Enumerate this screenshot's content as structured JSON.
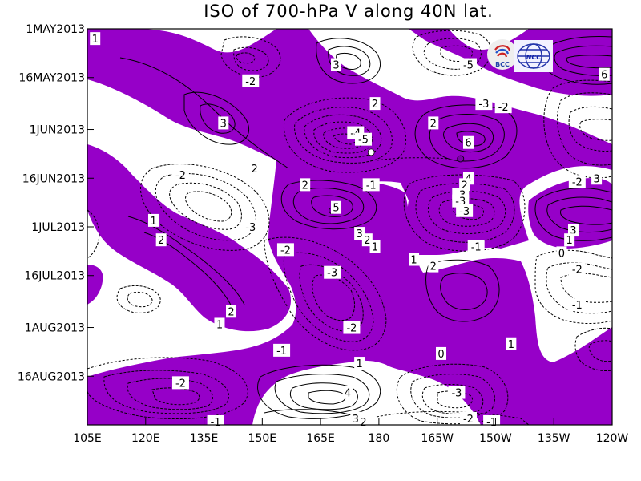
{
  "chart_data": {
    "type": "heatmap",
    "title": "ISO of 700-hPa V along 40N lat.",
    "xlabel": "",
    "ylabel": "",
    "x_ticks": [
      "105E",
      "120E",
      "135E",
      "150E",
      "165E",
      "180",
      "165W",
      "150W",
      "135W",
      "120W"
    ],
    "x_range": [
      "105E",
      "120W"
    ],
    "y_ticks": [
      "1MAY2013",
      "16MAY2013",
      "1JUN2013",
      "16JUN2013",
      "1JUL2013",
      "16JUL2013",
      "1AUG2013",
      "16AUG2013"
    ],
    "y_range": [
      "1MAY2013",
      "31AUG2013"
    ],
    "shading": {
      "positive_color": "#9600c8",
      "negative_color": "#ffffff",
      "threshold": 0
    },
    "contour_labels": [
      {
        "label": "1",
        "lon": "107E",
        "date": "2013-05-04"
      },
      {
        "label": "3",
        "lon": "169E",
        "date": "2013-05-12"
      },
      {
        "label": "-5",
        "lon": "157W",
        "date": "2013-05-12"
      },
      {
        "label": "6",
        "lon": "122W",
        "date": "2013-05-15"
      },
      {
        "label": "-2",
        "lon": "147E",
        "date": "2013-05-17"
      },
      {
        "label": "2",
        "lon": "179E",
        "date": "2013-05-24"
      },
      {
        "label": "-3",
        "lon": "153W",
        "date": "2013-05-24"
      },
      {
        "label": "-2",
        "lon": "148W",
        "date": "2013-05-25"
      },
      {
        "label": "3",
        "lon": "140E",
        "date": "2013-05-30"
      },
      {
        "label": "2",
        "lon": "166W",
        "date": "2013-05-30"
      },
      {
        "label": "-4",
        "lon": "174E",
        "date": "2013-06-02"
      },
      {
        "label": "-5",
        "lon": "176E",
        "date": "2013-06-04"
      },
      {
        "label": "6",
        "lon": "157W",
        "date": "2013-06-05"
      },
      {
        "label": "2",
        "lon": "148E",
        "date": "2013-06-13"
      },
      {
        "label": "-2",
        "lon": "129E",
        "date": "2013-06-15"
      },
      {
        "label": "-1",
        "lon": "178E",
        "date": "2013-06-18"
      },
      {
        "label": "4",
        "lon": "157W",
        "date": "2013-06-16"
      },
      {
        "label": "-2",
        "lon": "129W",
        "date": "2013-06-17"
      },
      {
        "label": "3",
        "lon": "124W",
        "date": "2013-06-16"
      },
      {
        "label": "2",
        "lon": "161E",
        "date": "2013-06-18"
      },
      {
        "label": "2",
        "lon": "158W",
        "date": "2013-06-18"
      },
      {
        "label": "-3",
        "lon": "159W",
        "date": "2013-06-21"
      },
      {
        "label": "5",
        "lon": "169E",
        "date": "2013-06-25"
      },
      {
        "label": "-3",
        "lon": "159W",
        "date": "2013-06-23"
      },
      {
        "label": "-3",
        "lon": "158W",
        "date": "2013-06-26"
      },
      {
        "label": "1",
        "lon": "122E",
        "date": "2013-06-29"
      },
      {
        "label": "-3",
        "lon": "147E",
        "date": "2013-07-01"
      },
      {
        "label": "3",
        "lon": "130W",
        "date": "2013-07-02"
      },
      {
        "label": "2",
        "lon": "124E",
        "date": "2013-07-05"
      },
      {
        "label": "3",
        "lon": "175E",
        "date": "2013-07-03"
      },
      {
        "label": "2",
        "lon": "177E",
        "date": "2013-07-05"
      },
      {
        "label": "1",
        "lon": "179E",
        "date": "2013-07-07"
      },
      {
        "label": "1",
        "lon": "131W",
        "date": "2013-07-05"
      },
      {
        "label": "0",
        "lon": "133W",
        "date": "2013-07-09"
      },
      {
        "label": "-2",
        "lon": "156E",
        "date": "2013-07-08"
      },
      {
        "label": "-1",
        "lon": "155W",
        "date": "2013-07-07"
      },
      {
        "label": "1",
        "lon": "171W",
        "date": "2013-07-11"
      },
      {
        "label": "2",
        "lon": "166W",
        "date": "2013-07-13"
      },
      {
        "label": "-2",
        "lon": "129W",
        "date": "2013-07-14"
      },
      {
        "label": "-3",
        "lon": "168E",
        "date": "2013-07-15"
      },
      {
        "label": "-1",
        "lon": "129W",
        "date": "2013-07-25"
      },
      {
        "label": "2",
        "lon": "142E",
        "date": "2013-07-27"
      },
      {
        "label": "1",
        "lon": "139E",
        "date": "2013-07-31"
      },
      {
        "label": "-2",
        "lon": "173E",
        "date": "2013-08-01"
      },
      {
        "label": "1",
        "lon": "146W",
        "date": "2013-08-06"
      },
      {
        "label": "-1",
        "lon": "155E",
        "date": "2013-08-08"
      },
      {
        "label": "0",
        "lon": "164W",
        "date": "2013-08-09"
      },
      {
        "label": "1",
        "lon": "175E",
        "date": "2013-08-12"
      },
      {
        "label": "-2",
        "lon": "129E",
        "date": "2013-08-18"
      },
      {
        "label": "4",
        "lon": "172E",
        "date": "2013-08-21"
      },
      {
        "label": "-3",
        "lon": "160W",
        "date": "2013-08-21"
      },
      {
        "label": "-2",
        "lon": "157W",
        "date": "2013-08-29"
      },
      {
        "label": "3",
        "lon": "174E",
        "date": "2013-08-29"
      },
      {
        "label": "2",
        "lon": "176E",
        "date": "2013-08-30"
      },
      {
        "label": "-1",
        "lon": "138E",
        "date": "2013-08-30"
      },
      {
        "label": "-1",
        "lon": "151W",
        "date": "2013-08-30"
      }
    ],
    "extrema": [
      {
        "label": "+",
        "sign": "positive",
        "lon": "168E",
        "date": "2013-06-26"
      },
      {
        "label": "+",
        "sign": "positive",
        "lon": "159W",
        "date": "2013-06-10"
      },
      {
        "label": "-",
        "sign": "negative",
        "lon": "159W",
        "date": "2013-06-26"
      },
      {
        "label": "-",
        "sign": "negative",
        "lon": "178E",
        "date": "2013-06-08"
      }
    ]
  },
  "logos": {
    "bcc": {
      "text": "BCC",
      "icon": "bcc-swirl-icon"
    },
    "ncc": {
      "text": "NCC",
      "icon": "ncc-globe-icon"
    }
  }
}
